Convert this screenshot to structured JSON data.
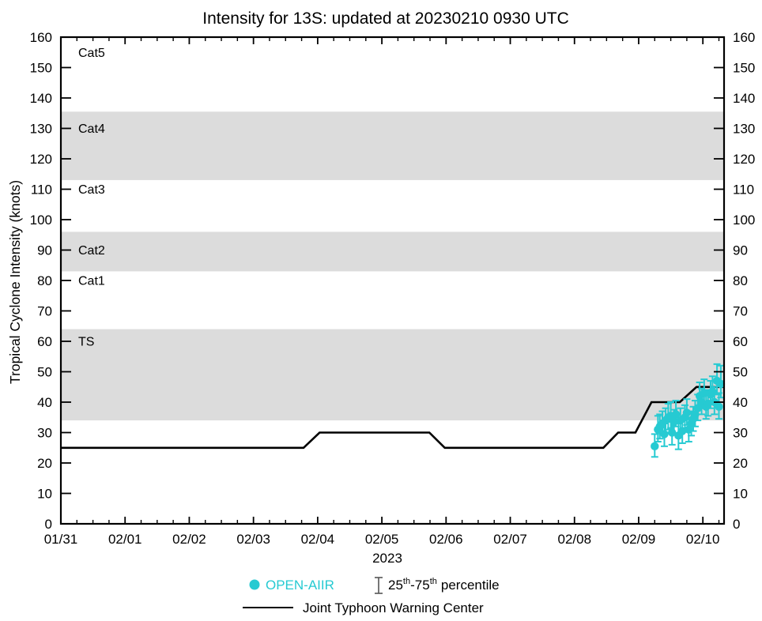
{
  "colors": {
    "teal": "#26CAD2",
    "band_gray": "#DCDCDC",
    "line_black": "#000000",
    "whisker_icon_gray": "#555555"
  },
  "chart_data": {
    "type": "line",
    "title": "Intensity for 13S: updated at 20230210 0930 UTC",
    "ylabel": "Tropical Cyclone Intensity (knots)",
    "ylim": [
      0,
      160
    ],
    "ytick_step": 10,
    "grid": "off",
    "legend_position": "bottom-center",
    "x_axis": {
      "tick_labels": [
        "01/31",
        "02/01",
        "02/02",
        "02/03",
        "02/04",
        "02/05",
        "02/06",
        "02/07",
        "02/08",
        "02/09",
        "02/10"
      ],
      "year": "2023",
      "days_total": 10.33,
      "minor_ticks_per_day": 4
    },
    "bands": [
      {
        "label": "TS",
        "from": 34,
        "to": 64
      },
      {
        "label": "Cat2",
        "from": 83,
        "to": 96
      },
      {
        "label": "Cat4",
        "from": 113,
        "to": 135.5
      }
    ],
    "category_labels": [
      {
        "text": "Cat5",
        "knots": 155
      },
      {
        "text": "Cat4",
        "knots": 130
      },
      {
        "text": "Cat3",
        "knots": 110
      },
      {
        "text": "Cat2",
        "knots": 90
      },
      {
        "text": "Cat1",
        "knots": 80
      },
      {
        "text": "TS",
        "knots": 60
      }
    ],
    "series": [
      {
        "name": "Joint Typhoon Warning Center",
        "type": "line",
        "color": "#000000",
        "points": [
          [
            0,
            25
          ],
          [
            3.78,
            25
          ],
          [
            4.03,
            30
          ],
          [
            5.74,
            30
          ],
          [
            5.98,
            25
          ],
          [
            8.45,
            25
          ],
          [
            8.68,
            30
          ],
          [
            8.95,
            30
          ],
          [
            9.2,
            40
          ],
          [
            9.64,
            40
          ],
          [
            9.9,
            45
          ],
          [
            10.33,
            45
          ]
        ]
      },
      {
        "name": "OPEN-AIIR",
        "type": "scatter",
        "color": "#26CAD2",
        "point_format": [
          "day",
          "value",
          "p25",
          "p75"
        ],
        "points": [
          [
            9.25,
            25.5,
            22,
            29.5
          ],
          [
            9.3,
            31,
            27,
            35.5
          ],
          [
            9.33,
            32,
            28,
            36
          ],
          [
            9.37,
            33,
            29.5,
            37
          ],
          [
            9.4,
            29.5,
            25.5,
            33
          ],
          [
            9.42,
            34,
            30,
            38
          ],
          [
            9.46,
            35,
            31,
            39.5
          ],
          [
            9.5,
            35.5,
            31.5,
            40
          ],
          [
            9.52,
            30,
            26,
            33.5
          ],
          [
            9.55,
            33.5,
            29.5,
            37.5
          ],
          [
            9.58,
            36,
            32,
            40.5
          ],
          [
            9.62,
            29,
            24.5,
            33
          ],
          [
            9.65,
            34,
            30,
            38
          ],
          [
            9.68,
            30.5,
            26.5,
            34.5
          ],
          [
            9.72,
            35,
            31,
            39
          ],
          [
            9.75,
            36.5,
            32.5,
            41
          ],
          [
            9.78,
            31,
            27,
            35
          ],
          [
            9.82,
            33,
            29,
            37
          ],
          [
            9.85,
            34.5,
            30.5,
            38.5
          ],
          [
            9.88,
            36,
            32,
            40.5
          ],
          [
            9.92,
            38,
            34,
            42.5
          ],
          [
            9.95,
            42,
            38,
            46.5
          ],
          [
            9.98,
            40,
            36,
            44.5
          ],
          [
            10.02,
            43,
            39,
            47.5
          ],
          [
            10.05,
            38.5,
            34.5,
            42.5
          ],
          [
            10.08,
            39.5,
            35.5,
            44
          ],
          [
            10.12,
            42.5,
            38,
            47
          ],
          [
            10.15,
            43.5,
            39.5,
            48.5
          ],
          [
            10.18,
            40,
            36,
            45
          ],
          [
            10.22,
            47,
            42.5,
            52.5
          ],
          [
            10.25,
            38.5,
            34.5,
            43
          ],
          [
            10.28,
            46,
            41.5,
            52
          ]
        ]
      }
    ],
    "legend": {
      "open_aiir": "OPEN-AIIR",
      "percentile_lo": "25",
      "percentile_hi": "75",
      "ordinal_suffix": "th",
      "range_separator": "-",
      "percentile_word": "percentile",
      "jtwc": "Joint Typhoon Warning Center"
    }
  }
}
